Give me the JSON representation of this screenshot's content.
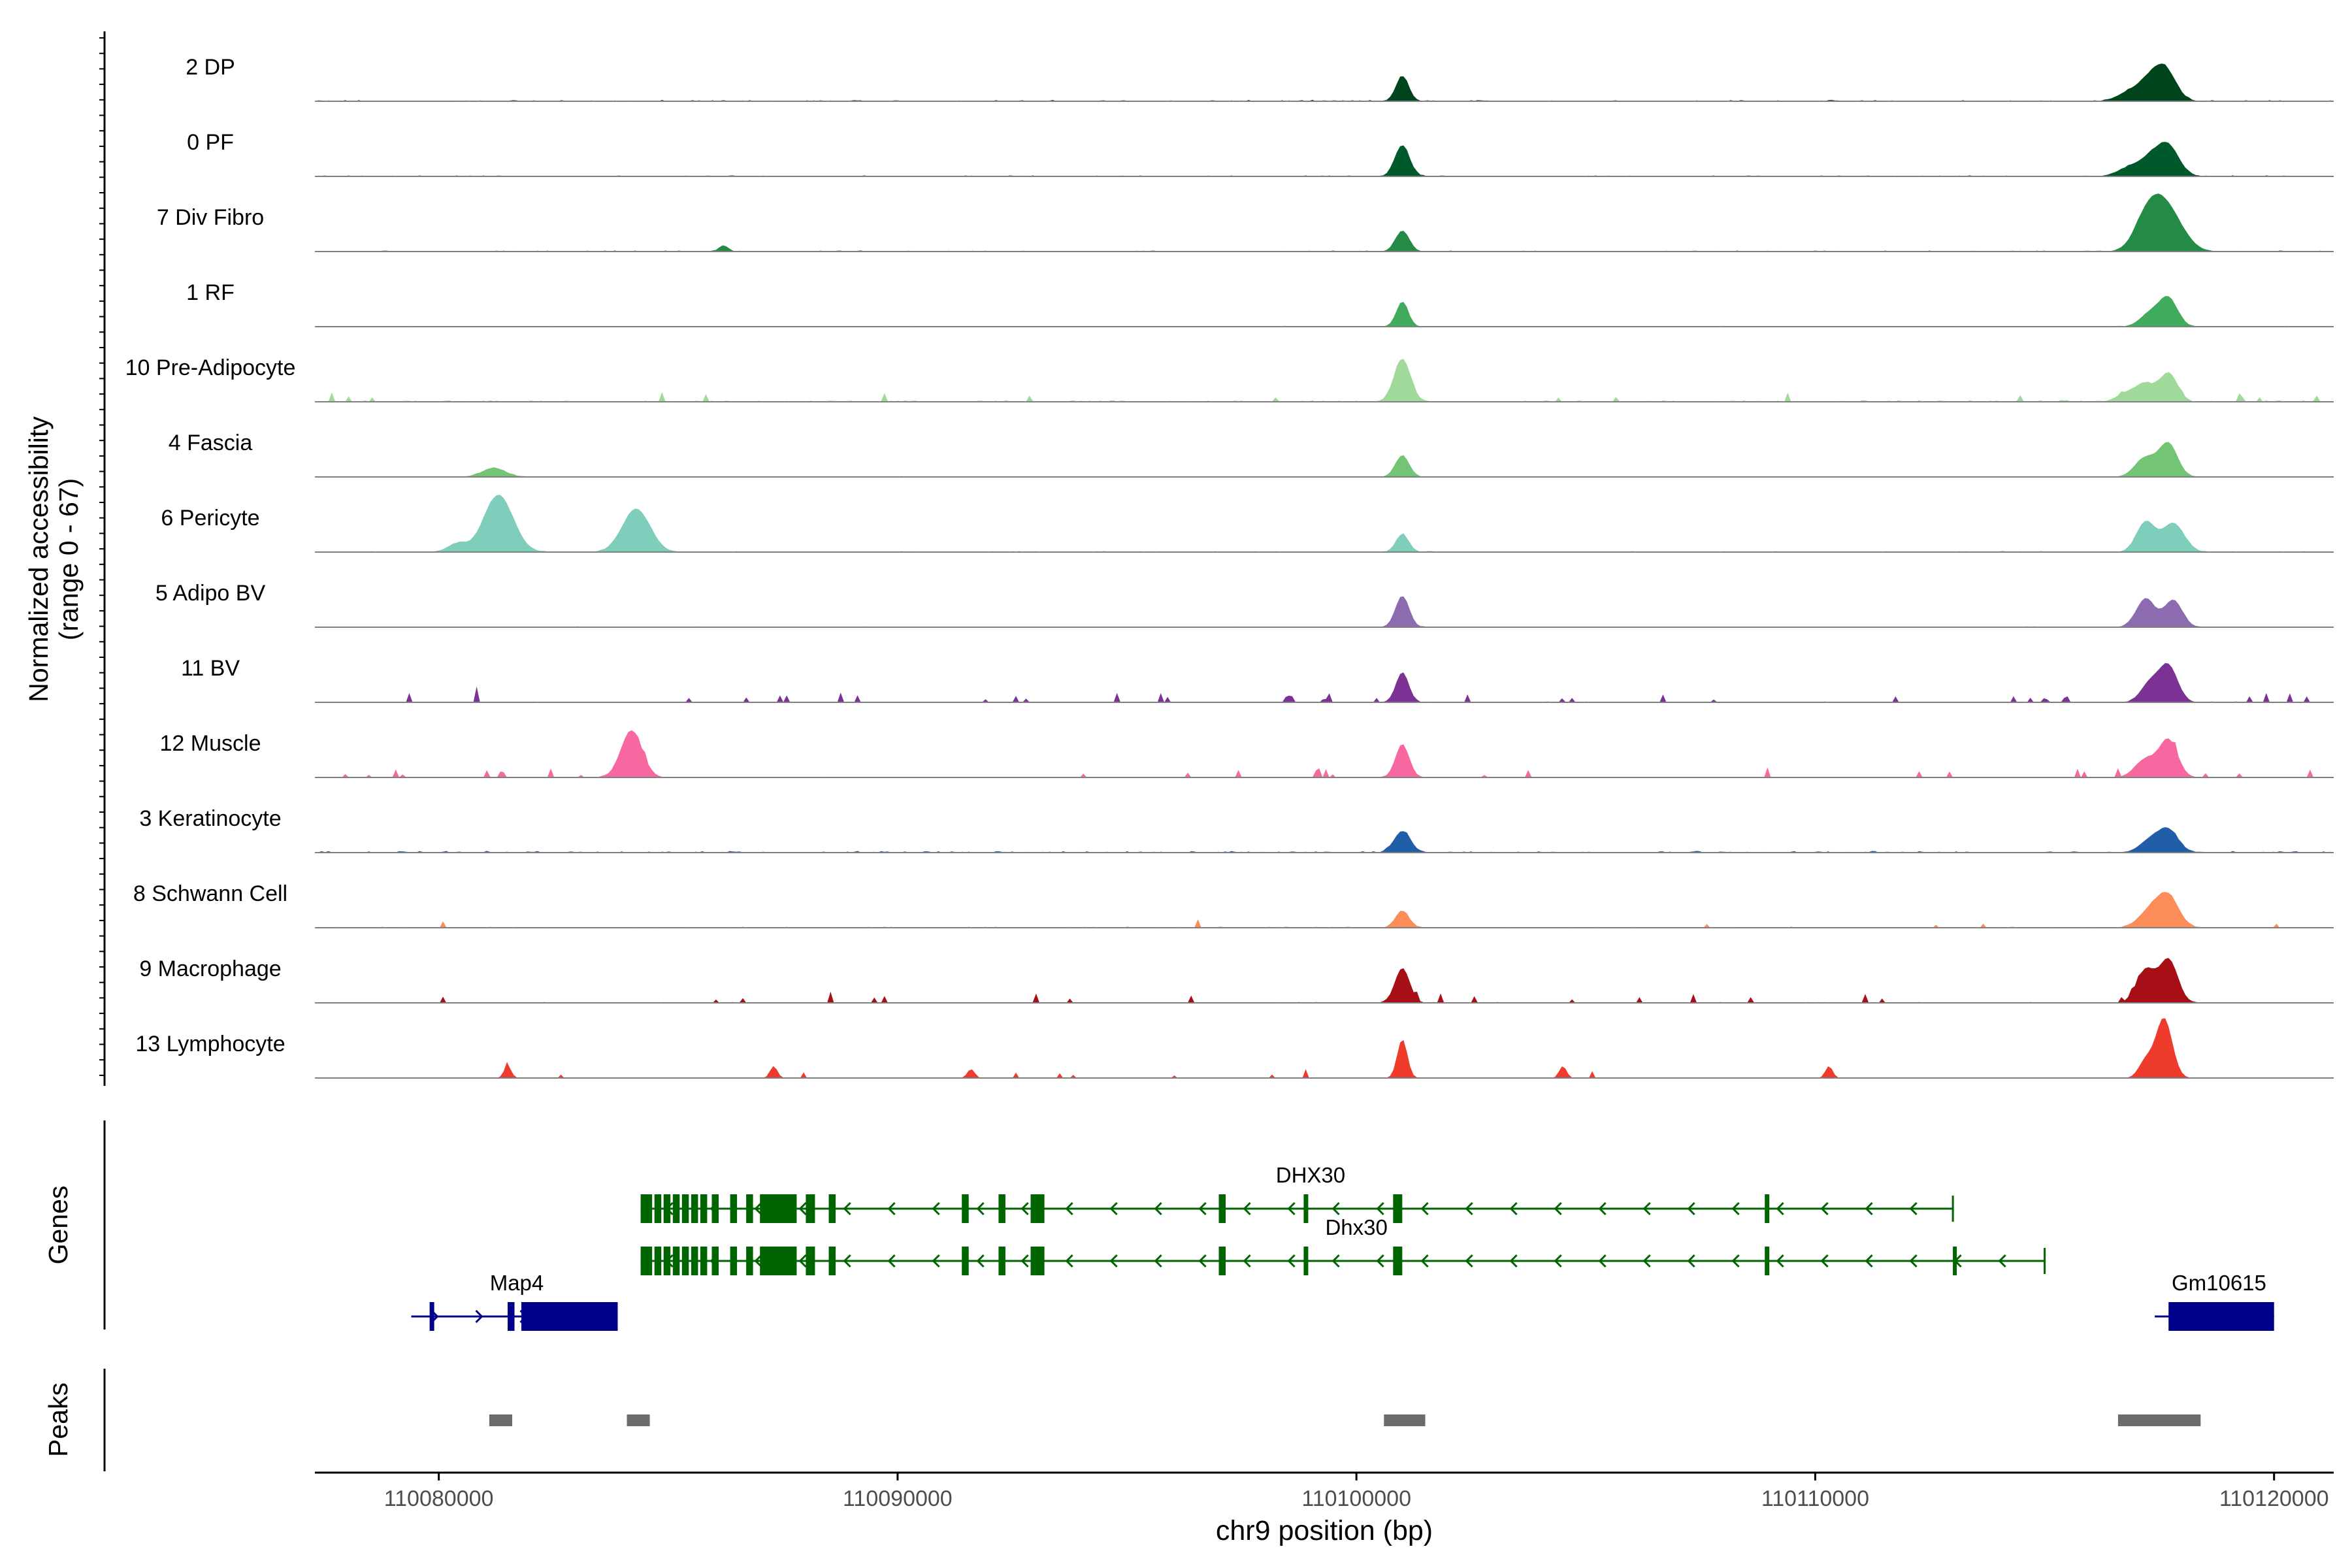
{
  "chart_data": {
    "type": "area",
    "ylabel": [
      "Normalized accessibility",
      "(range 0 - 67)"
    ],
    "xlabel": "chr9 position (bp)",
    "y_range": [
      0,
      67
    ],
    "x_range": [
      110077300,
      110121300
    ],
    "x_ticks": [
      {
        "value": 110080000,
        "label": "110080000"
      },
      {
        "value": 110090000,
        "label": "110090000"
      },
      {
        "value": 110100000,
        "label": "110100000"
      },
      {
        "value": 110110000,
        "label": "110110000"
      },
      {
        "value": 110120000,
        "label": "110120000"
      }
    ],
    "track_gen": {
      "x_start": 110077300,
      "x_end": 110121300,
      "n_bins": 600
    },
    "tracks": [
      {
        "name": "2 DP",
        "color": "#00441b",
        "noise": 0.025,
        "spikes": 0,
        "peaks": [
          [
            110101000,
            0.42,
            140
          ],
          [
            110117300,
            0.35,
            260
          ],
          [
            110117650,
            0.44,
            230
          ],
          [
            110116800,
            0.12,
            250
          ]
        ]
      },
      {
        "name": "0 PF",
        "color": "#00592a",
        "noise": 0.02,
        "spikes": 0,
        "peaks": [
          [
            110101000,
            0.52,
            160
          ],
          [
            110117300,
            0.28,
            260
          ],
          [
            110117700,
            0.46,
            240
          ],
          [
            110116800,
            0.12,
            250
          ]
        ]
      },
      {
        "name": "7 Div Fibro",
        "color": "#238b45",
        "noise": 0.02,
        "spikes": 0,
        "peaks": [
          [
            110101000,
            0.35,
            150
          ],
          [
            110117200,
            0.35,
            260
          ],
          [
            110117600,
            0.8,
            360
          ],
          [
            110086200,
            0.1,
            100
          ]
        ]
      },
      {
        "name": "1 RF",
        "color": "#41ab5d",
        "noise": 0.015,
        "spikes": 0,
        "peaks": [
          [
            110101000,
            0.42,
            130
          ],
          [
            110117300,
            0.22,
            220
          ],
          [
            110117700,
            0.46,
            200
          ]
        ]
      },
      {
        "name": "10 Pre-Adipocyte",
        "color": "#a1d99b",
        "noise": 0.03,
        "spikes": 18,
        "peaks": [
          [
            110101000,
            0.72,
            180
          ],
          [
            110117200,
            0.28,
            200
          ],
          [
            110117700,
            0.48,
            190
          ],
          [
            110116800,
            0.14,
            220
          ]
        ]
      },
      {
        "name": "4 Fascia",
        "color": "#74c476",
        "noise": 0.015,
        "spikes": 0,
        "peaks": [
          [
            110081200,
            0.15,
            250
          ],
          [
            110101000,
            0.36,
            150
          ],
          [
            110117200,
            0.32,
            230
          ],
          [
            110117700,
            0.55,
            200
          ]
        ]
      },
      {
        "name": "6 Pericyte",
        "color": "#7fcdbb",
        "noise": 0.02,
        "spikes": 0,
        "peaks": [
          [
            110081300,
            0.95,
            320
          ],
          [
            110084300,
            0.72,
            300
          ],
          [
            110101000,
            0.3,
            140
          ],
          [
            110117200,
            0.5,
            200
          ],
          [
            110117800,
            0.48,
            240
          ],
          [
            110080400,
            0.14,
            200
          ]
        ]
      },
      {
        "name": "5 Adipo BV",
        "color": "#8c6bb1",
        "noise": 0.015,
        "spikes": 0,
        "peaks": [
          [
            110101000,
            0.52,
            150
          ],
          [
            110117200,
            0.48,
            200
          ],
          [
            110117800,
            0.45,
            200
          ]
        ]
      },
      {
        "name": "11 BV",
        "color": "#7b3294",
        "noise": 0.015,
        "spikes": 38,
        "peaks": [
          [
            110101000,
            0.5,
            140
          ],
          [
            110117300,
            0.32,
            200
          ],
          [
            110117700,
            0.6,
            200
          ]
        ]
      },
      {
        "name": "12 Muscle",
        "color": "#f768a1",
        "noise": 0.015,
        "spikes": 30,
        "peaks": [
          [
            110084200,
            0.78,
            230
          ],
          [
            110101000,
            0.55,
            150
          ],
          [
            110117200,
            0.3,
            230
          ],
          [
            110117700,
            0.62,
            200
          ]
        ]
      },
      {
        "name": "3 Keratinocyte",
        "color": "#225ea8",
        "noise": 0.03,
        "spikes": 0,
        "peaks": [
          [
            110101000,
            0.36,
            180
          ],
          [
            110117300,
            0.2,
            230
          ],
          [
            110117700,
            0.36,
            220
          ]
        ]
      },
      {
        "name": "8 Schwann Cell",
        "color": "#fc8d59",
        "noise": 0.02,
        "spikes": 6,
        "peaks": [
          [
            110101000,
            0.28,
            150
          ],
          [
            110117300,
            0.28,
            250
          ],
          [
            110117700,
            0.5,
            230
          ]
        ]
      },
      {
        "name": "9 Macrophage",
        "color": "#a50f15",
        "noise": 0.015,
        "spikes": 22,
        "peaks": [
          [
            110101000,
            0.58,
            160
          ],
          [
            110117200,
            0.55,
            200
          ],
          [
            110117700,
            0.72,
            200
          ]
        ]
      },
      {
        "name": "13 Lymphocyte",
        "color": "#ef3b2c",
        "noise": 0.0,
        "spikes": 10,
        "peaks": [
          [
            110101000,
            0.65,
            110
          ],
          [
            110117600,
            1.0,
            180
          ],
          [
            110117200,
            0.28,
            150
          ],
          [
            110104500,
            0.2,
            80
          ],
          [
            110081500,
            0.2,
            80
          ],
          [
            110087300,
            0.2,
            80
          ],
          [
            110110300,
            0.2,
            80
          ],
          [
            110091600,
            0.15,
            80
          ]
        ]
      }
    ],
    "genes_label": "Genes",
    "genes": [
      {
        "name": "DHX30",
        "color": "#006400",
        "row": 0,
        "strand": "-",
        "start": 110084400,
        "end": 110113000,
        "label_pos": 110099000,
        "exons": [
          [
            110084400,
            110084650
          ],
          [
            110084700,
            110084850
          ],
          [
            110084900,
            110085050
          ],
          [
            110085100,
            110085250
          ],
          [
            110085300,
            110085450
          ],
          [
            110085500,
            110085650
          ],
          [
            110085700,
            110085850
          ],
          [
            110085950,
            110086100
          ],
          [
            110086350,
            110086500
          ],
          [
            110086700,
            110086850
          ],
          [
            110087000,
            110087800
          ],
          [
            110088000,
            110088200
          ],
          [
            110088500,
            110088650
          ],
          [
            110091400,
            110091550
          ],
          [
            110092200,
            110092350
          ],
          [
            110092900,
            110093200
          ],
          [
            110097000,
            110097150
          ],
          [
            110098850,
            110098950
          ],
          [
            110100800,
            110101000
          ],
          [
            110108900,
            110109000
          ]
        ]
      },
      {
        "name": "Dhx30",
        "color": "#006400",
        "row": 1,
        "strand": "-",
        "start": 110084400,
        "end": 110115000,
        "label_pos": 110100000,
        "exons": [
          [
            110084400,
            110084650
          ],
          [
            110084700,
            110084850
          ],
          [
            110084900,
            110085050
          ],
          [
            110085100,
            110085250
          ],
          [
            110085300,
            110085450
          ],
          [
            110085500,
            110085650
          ],
          [
            110085700,
            110085850
          ],
          [
            110085950,
            110086100
          ],
          [
            110086350,
            110086500
          ],
          [
            110086700,
            110086850
          ],
          [
            110087000,
            110087800
          ],
          [
            110088000,
            110088200
          ],
          [
            110088500,
            110088650
          ],
          [
            110091400,
            110091550
          ],
          [
            110092200,
            110092350
          ],
          [
            110092900,
            110093200
          ],
          [
            110097000,
            110097150
          ],
          [
            110098850,
            110098950
          ],
          [
            110100800,
            110101000
          ],
          [
            110108900,
            110109000
          ],
          [
            110113000,
            110113050
          ]
        ]
      },
      {
        "name": "Map4",
        "color": "#00008b",
        "row": 2,
        "strand": "+",
        "start": 110079400,
        "end": 110083900,
        "label_pos": 110081700,
        "exons": [
          [
            110079800,
            110079900
          ],
          [
            110081500,
            110081650
          ],
          [
            110081800,
            110083900
          ]
        ]
      },
      {
        "name": "Gm10615",
        "color": "#00008b",
        "row": 2,
        "strand": "+",
        "start": 110117400,
        "end": 110120000,
        "label_pos": 110118800,
        "exons": [
          [
            110117700,
            110120000
          ]
        ]
      }
    ],
    "peaks_label": "Peaks",
    "peaks_color": "#6b6b6b",
    "peak_regions": [
      [
        110081100,
        110081600
      ],
      [
        110084100,
        110084600
      ],
      [
        110100600,
        110101500
      ],
      [
        110116600,
        110118400
      ]
    ]
  }
}
